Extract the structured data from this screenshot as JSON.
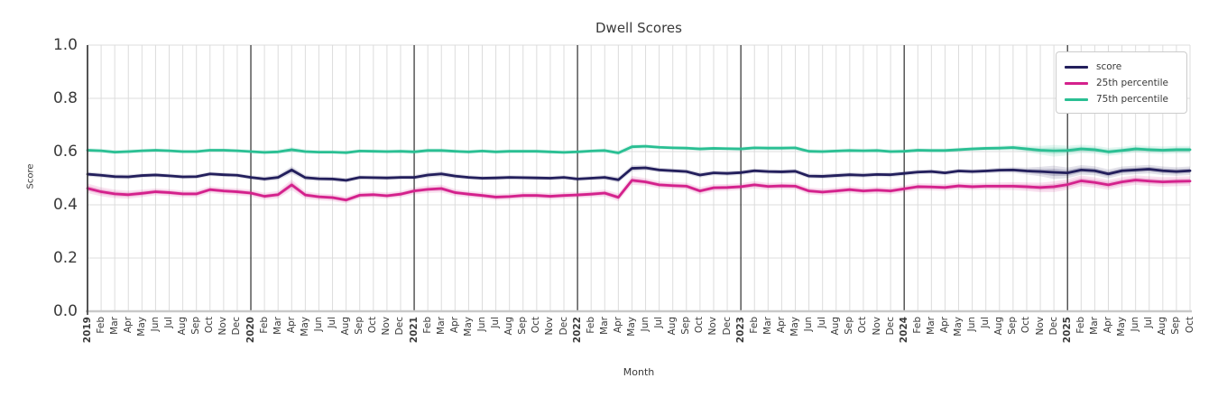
{
  "title": "Dwell Scores",
  "chart_data": {
    "type": "line",
    "title": "Dwell Scores",
    "xlabel": "Month",
    "ylabel": "Score",
    "ylim": [
      0.0,
      1.0
    ],
    "yticks": [
      0.0,
      0.2,
      0.4,
      0.6,
      0.8,
      1.0
    ],
    "ytick_labels": [
      "0.0",
      "0.2",
      "0.4",
      "0.6",
      "0.8",
      "1.0"
    ],
    "grid": true,
    "legend_position": "upper right",
    "x_labels": [
      "2019",
      "Feb",
      "Mar",
      "Apr",
      "May",
      "Jun",
      "Jul",
      "Aug",
      "Sep",
      "Oct",
      "Nov",
      "Dec",
      "2020",
      "Feb",
      "Mar",
      "Apr",
      "May",
      "Jun",
      "Jul",
      "Aug",
      "Sep",
      "Oct",
      "Nov",
      "Dec",
      "2021",
      "Feb",
      "Mar",
      "Apr",
      "May",
      "Jun",
      "Jul",
      "Aug",
      "Sep",
      "Oct",
      "Nov",
      "Dec",
      "2022",
      "Feb",
      "Mar",
      "Apr",
      "May",
      "Jun",
      "Jul",
      "Aug",
      "Sep",
      "Oct",
      "Nov",
      "Dec",
      "2023",
      "Feb",
      "Mar",
      "Apr",
      "May",
      "Jun",
      "Jul",
      "Aug",
      "Sep",
      "Oct",
      "Nov",
      "Dec",
      "2024",
      "Feb",
      "Mar",
      "Apr",
      "May",
      "Jun",
      "Jul",
      "Aug",
      "Sep",
      "Oct",
      "Nov",
      "Dec",
      "2025",
      "Feb",
      "Mar",
      "Apr",
      "May",
      "Jun",
      "Jul",
      "Aug",
      "Sep",
      "Oct"
    ],
    "year_tick_indices": [
      0,
      12,
      24,
      36,
      48,
      60,
      72
    ],
    "colors": {
      "grid_light": "#dcdcdc",
      "grid_year": "#3c3c3c",
      "axis_bottom": "#c9c9c9",
      "spine_left": "#2f2f2f",
      "text": "#3a3a3a"
    },
    "series": [
      {
        "name": "score",
        "color": "#231f5c",
        "values": [
          0.515,
          0.511,
          0.506,
          0.505,
          0.51,
          0.512,
          0.509,
          0.505,
          0.506,
          0.516,
          0.513,
          0.511,
          0.503,
          0.497,
          0.503,
          0.531,
          0.502,
          0.498,
          0.497,
          0.492,
          0.503,
          0.502,
          0.501,
          0.503,
          0.503,
          0.512,
          0.516,
          0.508,
          0.503,
          0.5,
          0.501,
          0.503,
          0.502,
          0.501,
          0.5,
          0.503,
          0.497,
          0.5,
          0.503,
          0.494,
          0.537,
          0.539,
          0.531,
          0.528,
          0.525,
          0.512,
          0.52,
          0.518,
          0.521,
          0.528,
          0.525,
          0.524,
          0.526,
          0.508,
          0.507,
          0.51,
          0.513,
          0.511,
          0.514,
          0.513,
          0.518,
          0.523,
          0.525,
          0.52,
          0.527,
          0.525,
          0.527,
          0.53,
          0.531,
          0.527,
          0.525,
          0.522,
          0.52,
          0.531,
          0.528,
          0.516,
          0.528,
          0.531,
          0.534,
          0.528,
          0.525,
          0.528
        ],
        "band_halfwidth": [
          0.009,
          0.009,
          0.009,
          0.009,
          0.008,
          0.008,
          0.008,
          0.008,
          0.008,
          0.008,
          0.008,
          0.008,
          0.008,
          0.009,
          0.01,
          0.014,
          0.01,
          0.009,
          0.009,
          0.009,
          0.008,
          0.008,
          0.008,
          0.008,
          0.009,
          0.01,
          0.01,
          0.009,
          0.008,
          0.008,
          0.008,
          0.008,
          0.008,
          0.008,
          0.008,
          0.008,
          0.008,
          0.008,
          0.009,
          0.011,
          0.012,
          0.01,
          0.009,
          0.009,
          0.009,
          0.01,
          0.009,
          0.009,
          0.009,
          0.009,
          0.009,
          0.009,
          0.009,
          0.009,
          0.009,
          0.009,
          0.009,
          0.009,
          0.009,
          0.009,
          0.009,
          0.009,
          0.009,
          0.009,
          0.009,
          0.009,
          0.009,
          0.01,
          0.011,
          0.013,
          0.018,
          0.025,
          0.02,
          0.018,
          0.017,
          0.017,
          0.016,
          0.016,
          0.016,
          0.016,
          0.016,
          0.016
        ]
      },
      {
        "name": "25th percentile",
        "color": "#d4218c",
        "values": [
          0.462,
          0.449,
          0.441,
          0.438,
          0.443,
          0.449,
          0.446,
          0.441,
          0.441,
          0.457,
          0.452,
          0.449,
          0.444,
          0.432,
          0.438,
          0.475,
          0.437,
          0.43,
          0.427,
          0.418,
          0.436,
          0.438,
          0.434,
          0.44,
          0.452,
          0.458,
          0.461,
          0.446,
          0.44,
          0.435,
          0.429,
          0.431,
          0.435,
          0.435,
          0.432,
          0.435,
          0.437,
          0.44,
          0.444,
          0.428,
          0.492,
          0.486,
          0.475,
          0.472,
          0.47,
          0.452,
          0.464,
          0.465,
          0.468,
          0.475,
          0.469,
          0.471,
          0.47,
          0.452,
          0.448,
          0.452,
          0.457,
          0.452,
          0.455,
          0.452,
          0.46,
          0.468,
          0.467,
          0.465,
          0.471,
          0.468,
          0.47,
          0.47,
          0.47,
          0.468,
          0.465,
          0.468,
          0.476,
          0.49,
          0.484,
          0.475,
          0.486,
          0.493,
          0.489,
          0.486,
          0.488,
          0.489
        ],
        "band_halfwidth": [
          0.018,
          0.017,
          0.016,
          0.015,
          0.014,
          0.013,
          0.013,
          0.013,
          0.013,
          0.013,
          0.013,
          0.013,
          0.013,
          0.013,
          0.014,
          0.02,
          0.014,
          0.013,
          0.013,
          0.013,
          0.012,
          0.012,
          0.012,
          0.012,
          0.013,
          0.014,
          0.015,
          0.013,
          0.012,
          0.012,
          0.012,
          0.012,
          0.012,
          0.012,
          0.012,
          0.012,
          0.012,
          0.012,
          0.013,
          0.015,
          0.017,
          0.014,
          0.013,
          0.013,
          0.013,
          0.014,
          0.013,
          0.013,
          0.013,
          0.014,
          0.013,
          0.013,
          0.013,
          0.013,
          0.013,
          0.013,
          0.013,
          0.013,
          0.013,
          0.013,
          0.013,
          0.013,
          0.013,
          0.013,
          0.013,
          0.013,
          0.013,
          0.014,
          0.015,
          0.016,
          0.018,
          0.02,
          0.02,
          0.02,
          0.019,
          0.019,
          0.018,
          0.018,
          0.018,
          0.018,
          0.018,
          0.018
        ]
      },
      {
        "name": "75th percentile",
        "color": "#2abf93",
        "values": [
          0.605,
          0.603,
          0.598,
          0.6,
          0.603,
          0.605,
          0.603,
          0.6,
          0.6,
          0.605,
          0.605,
          0.603,
          0.6,
          0.597,
          0.599,
          0.607,
          0.6,
          0.598,
          0.598,
          0.596,
          0.602,
          0.601,
          0.6,
          0.601,
          0.599,
          0.604,
          0.604,
          0.601,
          0.599,
          0.602,
          0.599,
          0.601,
          0.601,
          0.601,
          0.599,
          0.597,
          0.599,
          0.602,
          0.604,
          0.595,
          0.618,
          0.62,
          0.616,
          0.614,
          0.613,
          0.61,
          0.612,
          0.611,
          0.61,
          0.614,
          0.613,
          0.613,
          0.614,
          0.601,
          0.6,
          0.602,
          0.604,
          0.603,
          0.604,
          0.6,
          0.601,
          0.605,
          0.604,
          0.604,
          0.607,
          0.61,
          0.612,
          0.613,
          0.615,
          0.61,
          0.605,
          0.603,
          0.604,
          0.61,
          0.607,
          0.599,
          0.604,
          0.61,
          0.607,
          0.605,
          0.607,
          0.607
        ],
        "band_halfwidth": [
          0.008,
          0.008,
          0.008,
          0.008,
          0.007,
          0.007,
          0.007,
          0.007,
          0.007,
          0.007,
          0.007,
          0.007,
          0.007,
          0.008,
          0.008,
          0.01,
          0.008,
          0.007,
          0.007,
          0.007,
          0.007,
          0.007,
          0.007,
          0.007,
          0.008,
          0.008,
          0.008,
          0.007,
          0.007,
          0.007,
          0.007,
          0.007,
          0.007,
          0.007,
          0.007,
          0.007,
          0.007,
          0.007,
          0.008,
          0.009,
          0.01,
          0.008,
          0.007,
          0.007,
          0.007,
          0.008,
          0.007,
          0.007,
          0.008,
          0.008,
          0.008,
          0.008,
          0.008,
          0.008,
          0.008,
          0.008,
          0.008,
          0.008,
          0.008,
          0.008,
          0.008,
          0.008,
          0.008,
          0.008,
          0.008,
          0.008,
          0.008,
          0.009,
          0.01,
          0.012,
          0.016,
          0.022,
          0.018,
          0.016,
          0.015,
          0.015,
          0.014,
          0.014,
          0.014,
          0.014,
          0.014,
          0.014
        ]
      }
    ]
  }
}
